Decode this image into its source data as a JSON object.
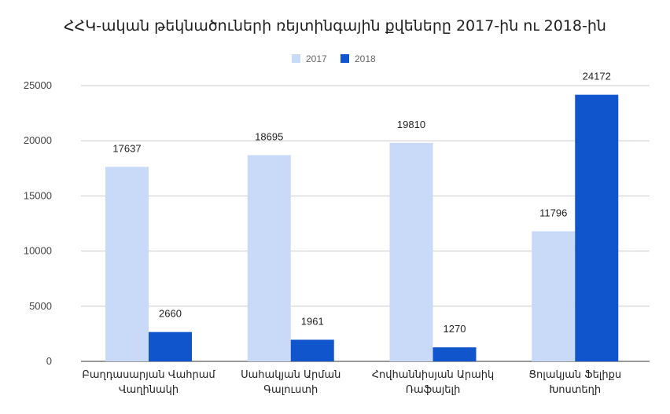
{
  "chart_data": {
    "type": "bar",
    "title": "ՀՀԿ-ական թեկնածուների ռեյտինգային քվեները 2017-ին ու 2018-ին",
    "xlabel": "",
    "ylabel": "",
    "categories": [
      [
        "Բաղդասարյան Վաhրամ",
        "Վաղինակի"
      ],
      [
        "Սահակյան Արման",
        "Գալուստի"
      ],
      [
        "Հովհաննիսյան Արաիկ",
        "Ռաֆայելի"
      ],
      [
        "Ցոլակյան Ֆելիքս",
        "Խոստեղի"
      ]
    ],
    "series": [
      {
        "name": "2017",
        "color": "#c9daf8",
        "values": [
          17637,
          18695,
          19810,
          11796
        ]
      },
      {
        "name": "2018",
        "color": "#1155cc",
        "values": [
          2660,
          1961,
          1270,
          24172
        ]
      }
    ],
    "yticks": [
      0,
      5000,
      10000,
      15000,
      20000,
      25000
    ],
    "ylim": [
      0,
      25000
    ],
    "grid": true,
    "legend": "top-center"
  }
}
